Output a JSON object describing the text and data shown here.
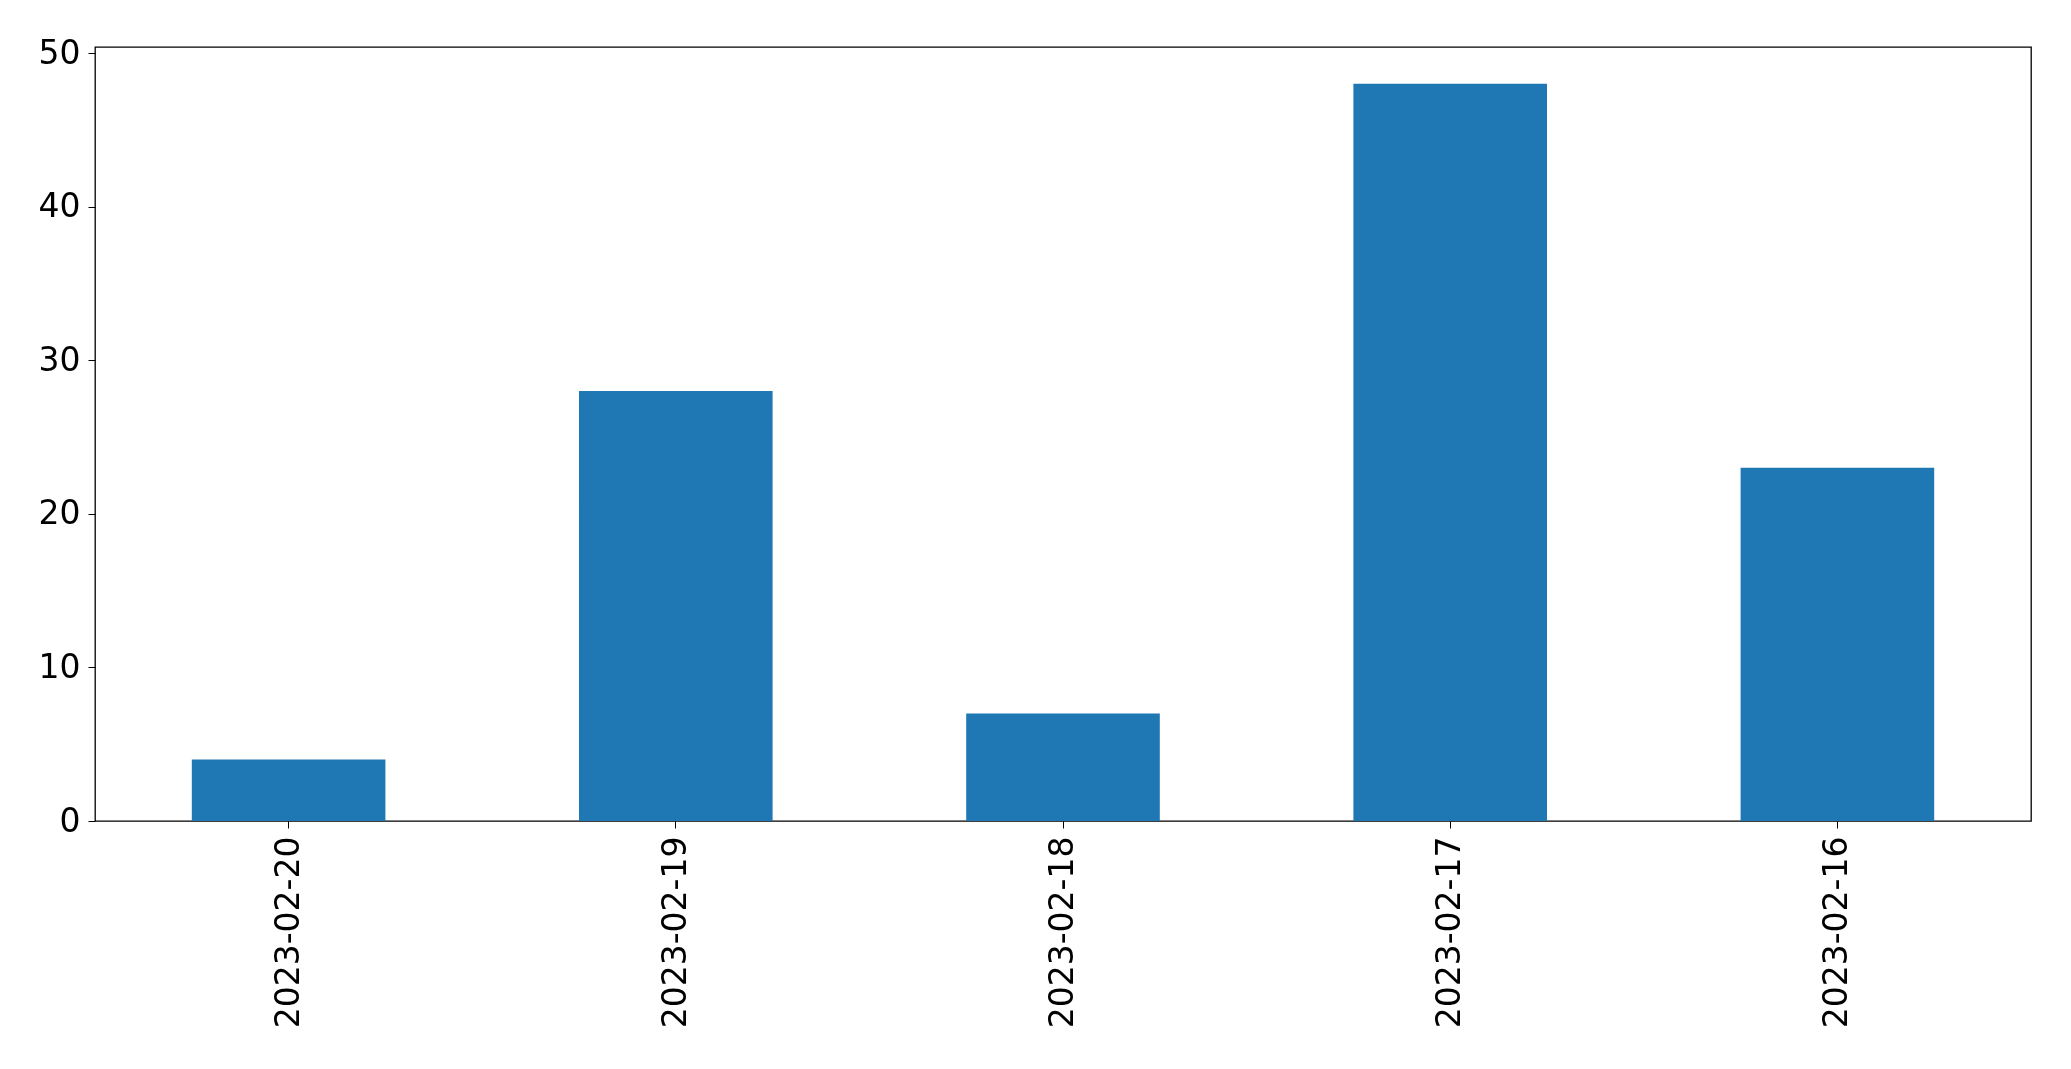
{
  "chart_data": {
    "type": "bar",
    "categories": [
      "2023-02-20",
      "2023-02-19",
      "2023-02-18",
      "2023-02-17",
      "2023-02-16"
    ],
    "values": [
      4,
      28,
      7,
      48,
      23
    ],
    "color": "#1f77b4",
    "ylim": [
      0,
      50.4
    ],
    "yticks": [
      0,
      10,
      20,
      30,
      40,
      50
    ],
    "grid": false
  }
}
